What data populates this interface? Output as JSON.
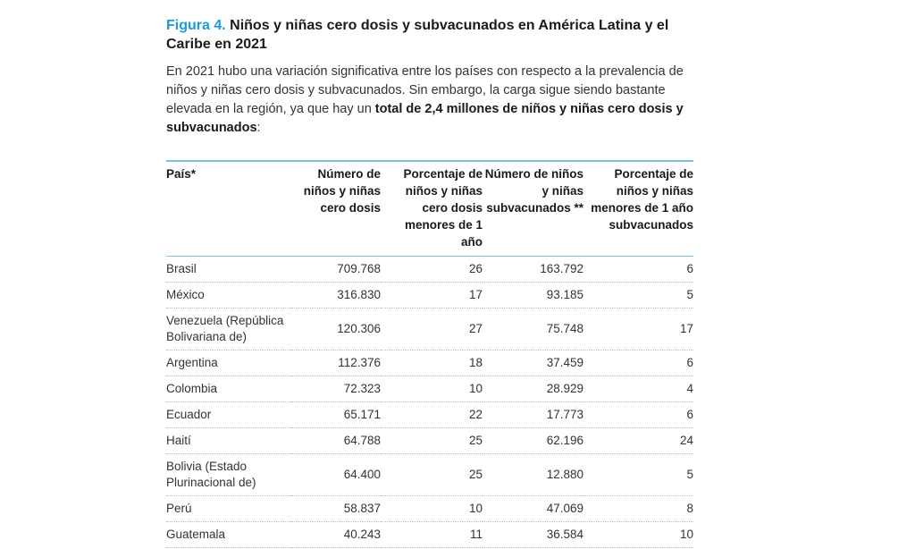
{
  "header": {
    "figure_label": "Figura 4.",
    "title": "Niños y niñas cero dosis y subvacunados en América Latina y el Caribe en 2021"
  },
  "intro": {
    "text_before": "En 2021 hubo una variación significativa entre los países con respecto a la prevalencia de niños y niñas cero dosis y subvacunados. Sin embargo, la carga sigue siendo bastante elevada en la región, ya que hay un ",
    "bold": "total de 2,4 millones de niños y niñas cero dosis y subvacunados",
    "text_after": ":"
  },
  "table": {
    "headers": [
      "País*",
      "Número de niños y niñas cero dosis",
      "Porcentaje de niños y niñas cero dosis menores de 1 año",
      "Número de niños y niñas subvacunados **",
      "Porcentaje de niños y niñas menores de 1 año subvacunados"
    ],
    "rows": [
      {
        "country": "Brasil",
        "zero_dose": "709.768",
        "zero_pct": "26",
        "under": "163.792",
        "under_pct": "6"
      },
      {
        "country": "México",
        "zero_dose": "316.830",
        "zero_pct": "17",
        "under": "93.185",
        "under_pct": "5"
      },
      {
        "country": "Venezuela (República Bolivariana de)",
        "zero_dose": "120.306",
        "zero_pct": "27",
        "under": "75.748",
        "under_pct": "17"
      },
      {
        "country": "Argentina",
        "zero_dose": "112.376",
        "zero_pct": "18",
        "under": "37.459",
        "under_pct": "6"
      },
      {
        "country": "Colombia",
        "zero_dose": "72.323",
        "zero_pct": "10",
        "under": "28.929",
        "under_pct": "4"
      },
      {
        "country": "Ecuador",
        "zero_dose": "65.171",
        "zero_pct": "22",
        "under": "17.773",
        "under_pct": "6"
      },
      {
        "country": "Haití",
        "zero_dose": "64.788",
        "zero_pct": "25",
        "under": "62.196",
        "under_pct": "24"
      },
      {
        "country": "Bolivia (Estado Plurinacional de)",
        "zero_dose": "64.400",
        "zero_pct": "25",
        "under": "12.880",
        "under_pct": "5"
      },
      {
        "country": "Perú",
        "zero_dose": "58.837",
        "zero_pct": "10",
        "under": "47.069",
        "under_pct": "8"
      },
      {
        "country": "Guatemala",
        "zero_dose": "40.243",
        "zero_pct": "11",
        "under": "36.584",
        "under_pct": "10"
      }
    ]
  }
}
